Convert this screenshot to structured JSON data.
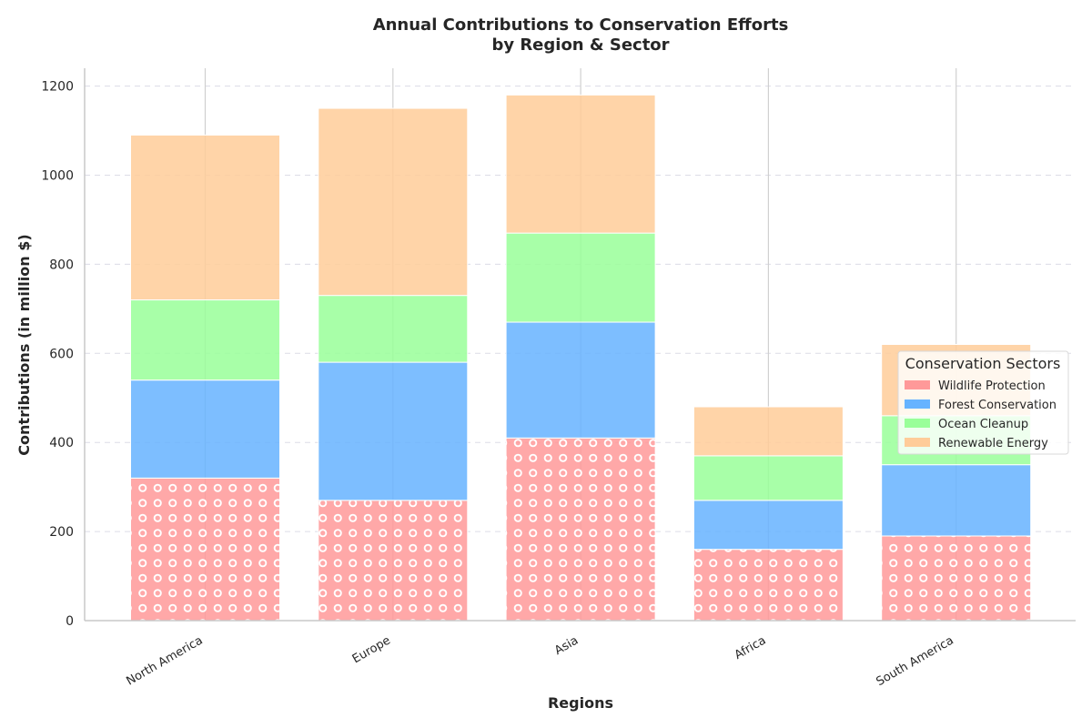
{
  "chart_data": {
    "type": "bar",
    "stacked": true,
    "title_line1": "Annual Contributions to Conservation Efforts",
    "title_line2": "by Region & Sector",
    "xlabel": "Regions",
    "ylabel": "Contributions (in million $)",
    "categories": [
      "North America",
      "Europe",
      "Asia",
      "Africa",
      "South America"
    ],
    "ylim": [
      0,
      1240
    ],
    "yticks": [
      0,
      200,
      400,
      600,
      800,
      1000,
      1200
    ],
    "grid": "y-dashed",
    "legend": {
      "title": "Conservation Sectors",
      "placement": "right"
    },
    "series": [
      {
        "name": "Wildlife Protection",
        "values": [
          320,
          270,
          410,
          160,
          190
        ],
        "color": "#ff9999",
        "pattern": "circles"
      },
      {
        "name": "Forest Conservation",
        "values": [
          220,
          310,
          260,
          110,
          160
        ],
        "color": "#66b3ff"
      },
      {
        "name": "Ocean Cleanup",
        "values": [
          180,
          150,
          200,
          100,
          110
        ],
        "color": "#99ff99"
      },
      {
        "name": "Renewable Energy",
        "values": [
          370,
          420,
          310,
          110,
          160
        ],
        "color": "#ffcc99"
      }
    ]
  }
}
